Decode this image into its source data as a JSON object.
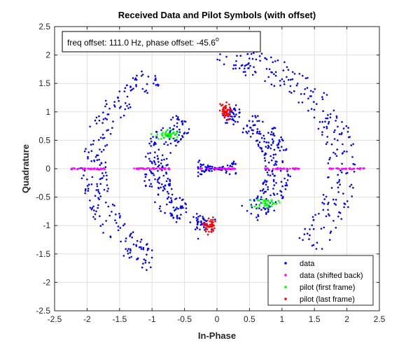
{
  "chart_data": {
    "type": "scatter",
    "title": "Received Data and Pilot Symbols (with offset)",
    "xlabel": "In-Phase",
    "ylabel": "Quadrature",
    "xlim": [
      -2.5,
      2.5
    ],
    "ylim": [
      -2.5,
      2.5
    ],
    "xticks": [
      "-2.5",
      "-2",
      "-1.5",
      "-1",
      "-0.5",
      "0",
      "0.5",
      "1",
      "1.5",
      "2",
      "2.5"
    ],
    "yticks": [
      "-2.5",
      "-2",
      "-1.5",
      "-1",
      "-0.5",
      "0",
      "0.5",
      "1",
      "1.5",
      "2",
      "2.5"
    ],
    "grid": true,
    "legend_position": "bottom-right",
    "annotation": {
      "text": "freq offset: 111.0 Hz, phase offset: -45.6",
      "superscript": "o"
    },
    "series": [
      {
        "name": "data",
        "color": "#0000ff",
        "clusters": [
          {
            "kind": "arc",
            "r_min": 1.7,
            "r_max": 2.15,
            "ang_min": 45,
            "ang_max": 90,
            "n": 90
          },
          {
            "kind": "arc",
            "r_min": 1.7,
            "r_max": 2.15,
            "ang_min": -45,
            "ang_max": 45,
            "n": 150
          },
          {
            "kind": "arc",
            "r_min": 1.7,
            "r_max": 2.1,
            "ang_min": 120,
            "ang_max": 240,
            "n": 230
          },
          {
            "kind": "arc",
            "r_min": 0.75,
            "r_max": 1.15,
            "ang_min": 120,
            "ang_max": 240,
            "n": 200
          },
          {
            "kind": "arc",
            "r_min": 0.75,
            "r_max": 1.15,
            "ang_min": -60,
            "ang_max": 60,
            "n": 200
          },
          {
            "kind": "bowtie",
            "half_width": 0.3,
            "n": 90
          },
          {
            "kind": "blob",
            "cx": 0.25,
            "cy": 0.95,
            "sx": 0.07,
            "sy": 0.07,
            "n": 40
          },
          {
            "kind": "blob",
            "cx": -0.25,
            "cy": -0.95,
            "sx": 0.07,
            "sy": 0.07,
            "n": 40
          }
        ]
      },
      {
        "name": "data (shifted back)",
        "color": "#ff00ff",
        "points": [
          [
            -2.0,
            0
          ],
          [
            -1.0,
            0
          ],
          [
            0,
            0
          ],
          [
            1.0,
            0
          ],
          [
            2.0,
            0
          ]
        ],
        "spread": 0.28
      },
      {
        "name": "pilot (first frame)",
        "color": "#00ff00",
        "points": [
          [
            -0.75,
            0.6
          ],
          [
            0.75,
            -0.6
          ]
        ],
        "spread": 0.09
      },
      {
        "name": "pilot (last frame)",
        "color": "#ff0000",
        "points": [
          [
            0.12,
            1.0
          ],
          [
            -0.12,
            -1.0
          ]
        ],
        "spread": 0.06
      }
    ]
  }
}
